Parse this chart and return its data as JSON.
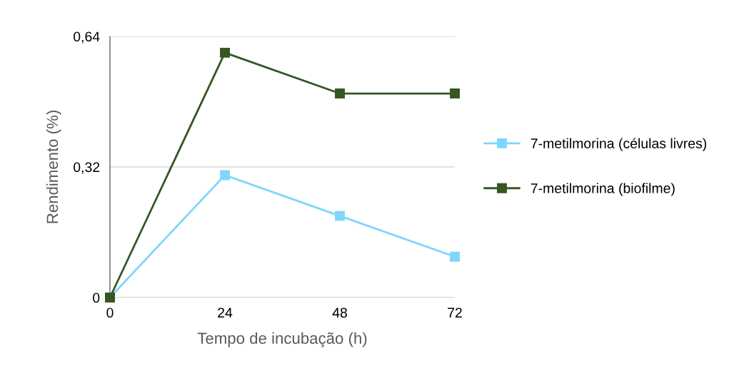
{
  "chart_data": {
    "type": "line",
    "xlabel": "Tempo de incubação (h)",
    "ylabel": "Rendimento (%)",
    "x": [
      0,
      24,
      48,
      72
    ],
    "xlim": [
      0,
      72
    ],
    "xticks": [
      0,
      24,
      48,
      72
    ],
    "ylim": [
      0,
      0.64
    ],
    "yticks": [
      0,
      {
        "value": 0.32,
        "label": "0,32"
      },
      {
        "value": 0.64,
        "label": "0,64"
      }
    ],
    "grid": "y",
    "legend": "right",
    "marker": "square",
    "line_style": "solid",
    "series": [
      {
        "name": "7-metilmorina (células livres)",
        "color": "#7fd6fb",
        "values": [
          0,
          0.3,
          0.2,
          0.1
        ]
      },
      {
        "name": "7-metilmorina (biofilme)",
        "color": "#375623",
        "values": [
          0,
          0.6,
          0.5,
          0.5
        ]
      }
    ]
  }
}
